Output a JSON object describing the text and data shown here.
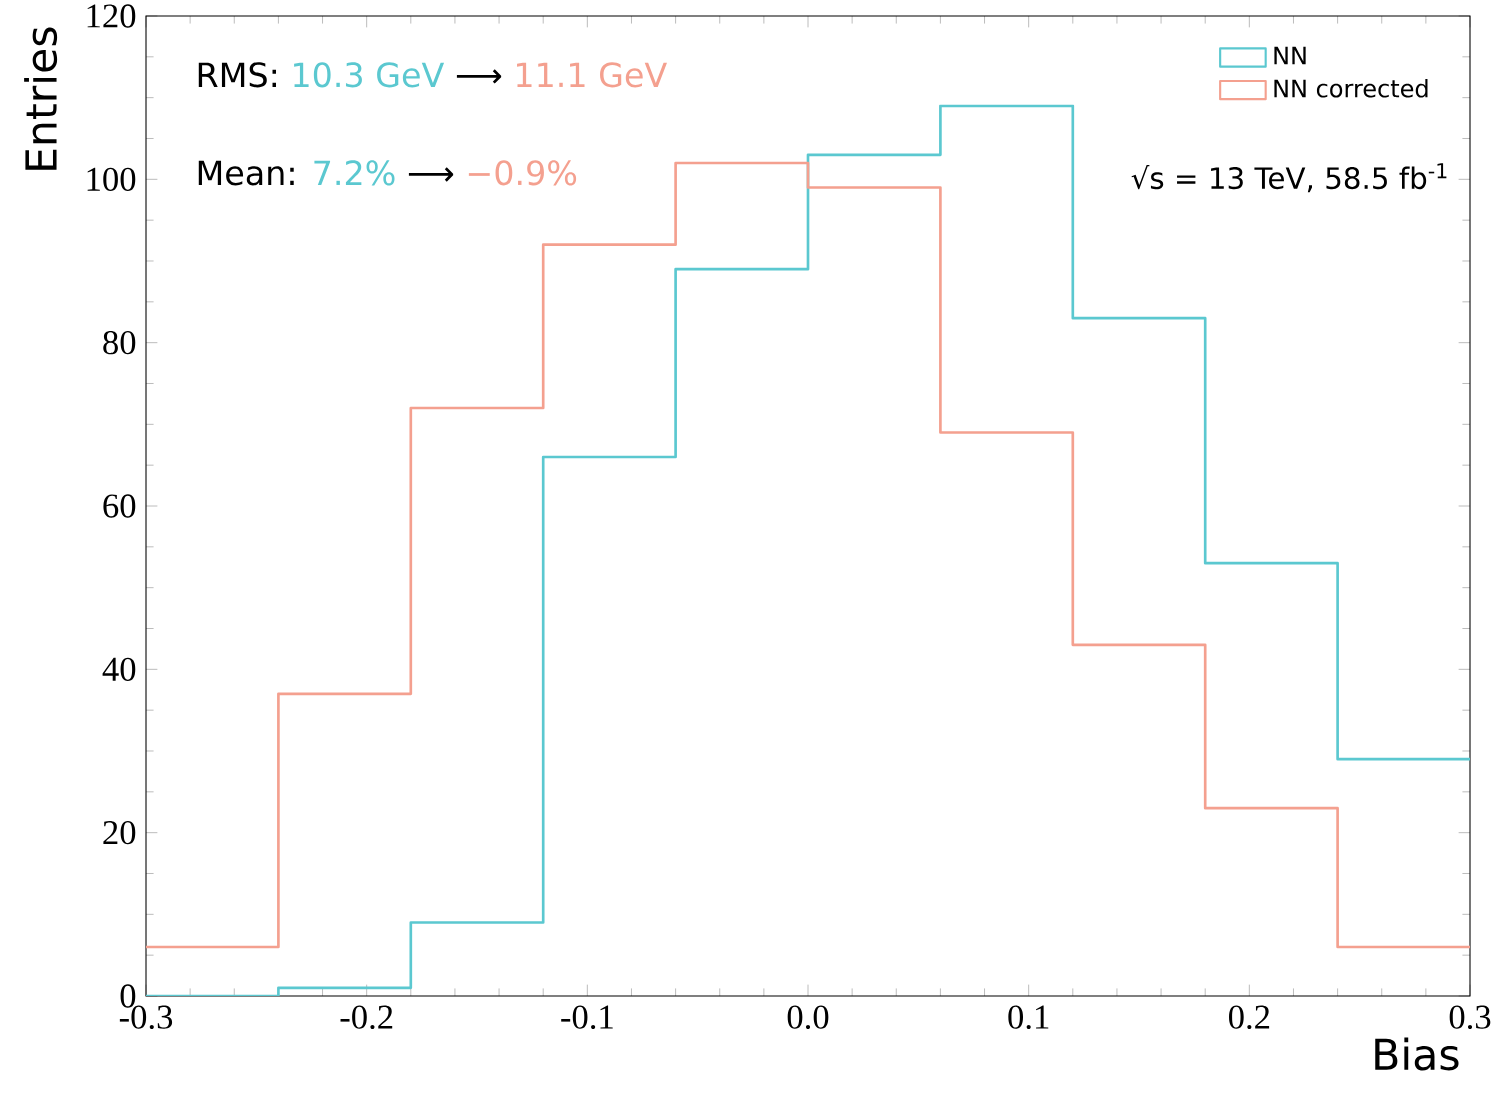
{
  "chart_data": {
    "type": "histogram",
    "bins": [
      -0.3,
      -0.24,
      -0.18,
      -0.12,
      -0.06,
      0,
      0.06,
      0.12,
      0.18,
      0.24,
      0.3
    ],
    "series": [
      {
        "name": "NN",
        "color": "#5bc8d0",
        "values": [
          0,
          1,
          9,
          66,
          89,
          103,
          109,
          83,
          53,
          29
        ]
      },
      {
        "name": "NN corrected",
        "color": "#f4a08f",
        "values": [
          6,
          37,
          72,
          92,
          102,
          99,
          69,
          43,
          23,
          6
        ]
      }
    ],
    "xlabel": "Bias",
    "ylabel": "Entries",
    "xlim": [
      -0.3,
      0.3
    ],
    "ylim": [
      0,
      120
    ],
    "xticks": [
      -0.3,
      -0.2,
      -0.1,
      {
        "value": 0,
        "label": "0.0"
      },
      0.1,
      0.2,
      0.3
    ],
    "yticks": [
      0,
      20,
      40,
      60,
      80,
      100,
      120
    ],
    "legend": "top right",
    "grid": false,
    "annotations": [
      "RMS:",
      "10.3 GeV",
      "⟶",
      "11.1 GeV",
      "Mean:",
      "7.2%",
      "⟶",
      "−0.9%",
      "√s = 13 TeV, 58.5 fb$^{-1}$"
    ]
  }
}
